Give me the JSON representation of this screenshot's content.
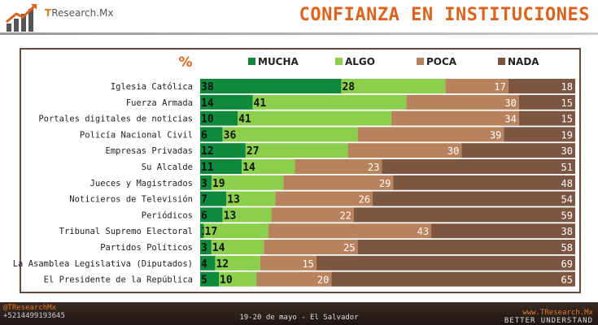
{
  "header": {
    "brand_prefix": "T",
    "brand_rest": "Research.Mx",
    "title": "CONFIANZA EN INSTITUCIONES"
  },
  "footer": {
    "left_handle": "@TResearchMx",
    "left_phone": "+5214499193645",
    "center": "19-20 de mayo - El Salvador",
    "right_site": "www.TResearch.Mx",
    "right_tag": "BETTER UNDERSTAND"
  },
  "colors": {
    "mucha": "#0f8a3c",
    "algo": "#8ccf4d",
    "poca": "#b8835c",
    "nada": "#7c5641",
    "accent": "#e0621a"
  },
  "chart_data": {
    "type": "bar",
    "orientation": "horizontal",
    "stacked": true,
    "unit_label": "%",
    "legend_position": "top",
    "categories": [
      "Iglesia Católica",
      "Fuerza Armada",
      "Portales digitales de noticias",
      "Policía Nacional Civil",
      "Empresas Privadas",
      "Su Alcalde",
      "Jueces y Magistrados",
      "Noticieros de Televisión",
      "Periódicos",
      "Tribunal Supremo Electoral",
      "Partidos Políticos",
      "La Asamblea Legislativa (Diputados)",
      "El Presidente de la República"
    ],
    "series": [
      {
        "name": "MUCHA",
        "color": "#0f8a3c",
        "values": [
          38,
          14,
          10,
          6,
          12,
          11,
          3,
          7,
          6,
          1,
          3,
          4,
          5
        ]
      },
      {
        "name": "ALGO",
        "color": "#8ccf4d",
        "values": [
          28,
          41,
          41,
          36,
          27,
          14,
          19,
          13,
          13,
          17,
          14,
          12,
          10
        ]
      },
      {
        "name": "POCA",
        "color": "#b8835c",
        "values": [
          17,
          30,
          34,
          39,
          30,
          23,
          29,
          26,
          22,
          43,
          25,
          15,
          20
        ]
      },
      {
        "name": "NADA",
        "color": "#7c5641",
        "values": [
          18,
          15,
          15,
          19,
          30,
          51,
          48,
          54,
          59,
          38,
          58,
          69,
          65
        ]
      }
    ]
  }
}
